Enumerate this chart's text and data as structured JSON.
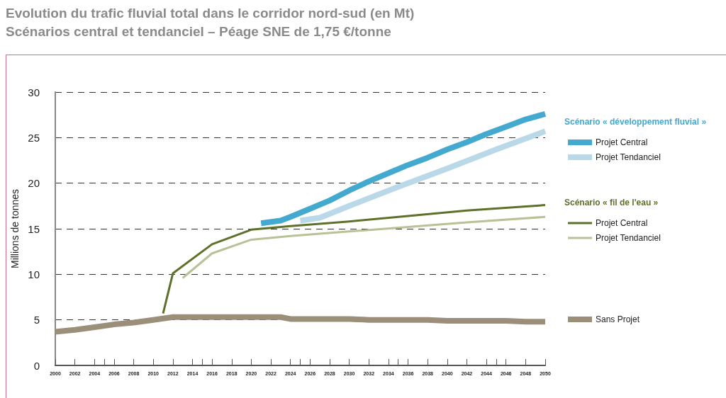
{
  "chart_data": {
    "type": "line",
    "title": "Evolution du trafic fluvial total dans le corridor nord-sud (en Mt)",
    "subtitle": "Scénarios central et tendanciel – Péage SNE de 1,75 €/tonne",
    "ylabel": "Millions de tonnes",
    "annotations": [
      "Scénario « développement fluvial »",
      "Scénario « fil de l'eau »"
    ],
    "xlim": [
      2000,
      2050
    ],
    "xticks": [
      2000,
      2002,
      2004,
      2006,
      2008,
      2010,
      2012,
      2014,
      2016,
      2018,
      2020,
      2022,
      2024,
      2026,
      2028,
      2030,
      2032,
      2034,
      2036,
      2038,
      2040,
      2042,
      2044,
      2046,
      2048,
      2050
    ],
    "ylim": [
      0,
      30
    ],
    "yticks": [
      0,
      5,
      10,
      15,
      20,
      25,
      30
    ],
    "grid": "y",
    "legend": "right",
    "marker": "none",
    "line_style": "solid",
    "series": [
      {
        "name": "Projet Central",
        "color": "#43a9cf",
        "x": [
          2021,
          2023,
          2024,
          2026,
          2028,
          2030,
          2032,
          2034,
          2036,
          2038,
          2040,
          2042,
          2044,
          2046,
          2048,
          2050
        ],
        "values": [
          15.6,
          15.9,
          16.3,
          17.2,
          18.1,
          19.2,
          20.2,
          21.1,
          22.0,
          22.8,
          23.7,
          24.5,
          25.4,
          26.2,
          27.0,
          27.6
        ]
      },
      {
        "name": "Projet Tendanciel",
        "color": "#b9d8e8",
        "x": [
          2025,
          2027,
          2030,
          2035,
          2040,
          2045,
          2050
        ],
        "values": [
          15.9,
          16.2,
          17.5,
          19.6,
          21.6,
          23.7,
          25.7
        ]
      },
      {
        "name": "Projet Central",
        "color": "#5e7029",
        "x": [
          2011,
          2012,
          2016,
          2020,
          2024,
          2030,
          2036,
          2042,
          2050
        ],
        "values": [
          5.7,
          10.1,
          13.3,
          14.9,
          15.3,
          15.8,
          16.4,
          17.0,
          17.6
        ]
      },
      {
        "name": "Projet Tendanciel",
        "color": "#b9c197",
        "x": [
          2013,
          2016,
          2020,
          2024,
          2030,
          2036,
          2042,
          2050
        ],
        "values": [
          9.6,
          12.3,
          13.8,
          14.2,
          14.7,
          15.2,
          15.7,
          16.3
        ]
      },
      {
        "name": "Sans Projet",
        "color": "#9c8f7a",
        "x": [
          2000,
          2002,
          2004,
          2006,
          2008,
          2010,
          2012,
          2014,
          2018,
          2023,
          2024,
          2030,
          2032,
          2038,
          2040,
          2046,
          2048,
          2050
        ],
        "values": [
          3.7,
          3.9,
          4.2,
          4.5,
          4.7,
          5.0,
          5.3,
          5.3,
          5.3,
          5.3,
          5.1,
          5.1,
          5.0,
          5.0,
          4.9,
          4.9,
          4.8,
          4.8
        ]
      }
    ]
  }
}
